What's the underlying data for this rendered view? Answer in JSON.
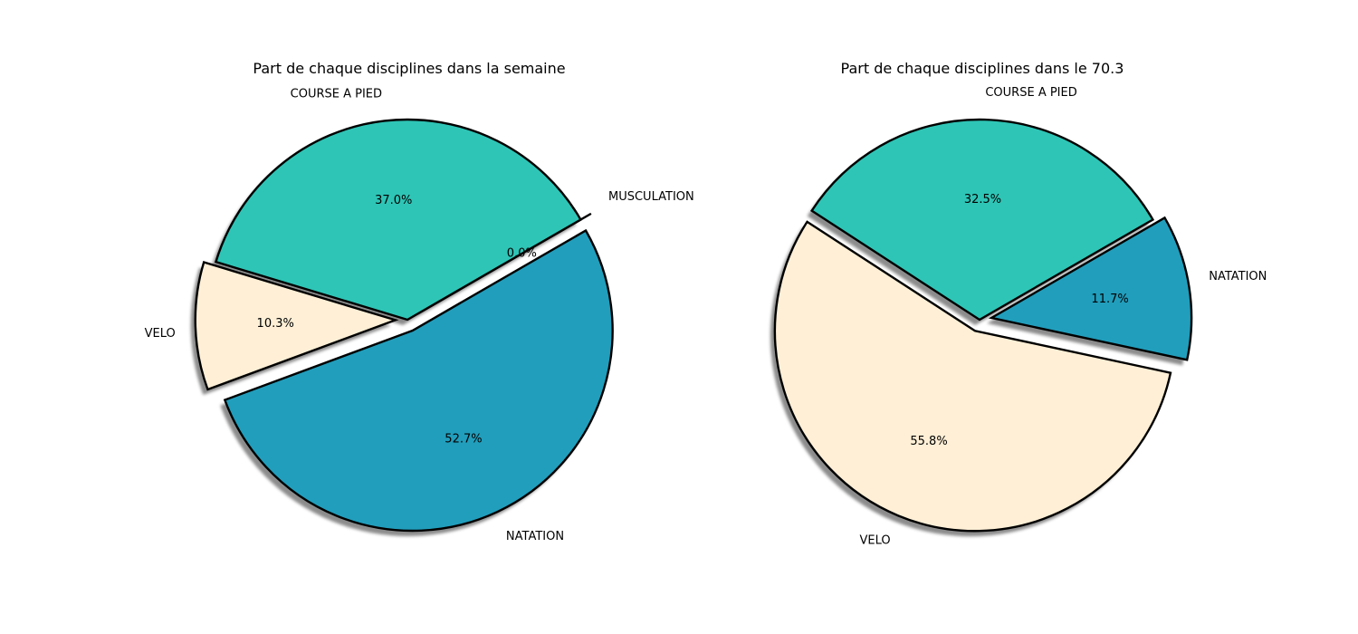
{
  "chart_data": [
    {
      "type": "pie",
      "title": "Part de chaque disciplines dans la semaine",
      "start_angle_deg": 30,
      "slices": [
        {
          "label": "MUSCULATION",
          "value": 0.0,
          "pct_label": "0.0%",
          "color": "#ffffff",
          "explode": true
        },
        {
          "label": "COURSE A PIED",
          "value": 37.0,
          "pct_label": "37.0%",
          "color": "#2ec5b6",
          "explode": false
        },
        {
          "label": "VELO",
          "value": 10.3,
          "pct_label": "10.3%",
          "color": "#feefd6",
          "explode": true
        },
        {
          "label": "NATATION",
          "value": 52.7,
          "pct_label": "52.7%",
          "color": "#219ebc",
          "explode": true
        }
      ]
    },
    {
      "type": "pie",
      "title": "Part de chaque disciplines dans le 70.3",
      "start_angle_deg": 30,
      "slices": [
        {
          "label": "COURSE A PIED",
          "value": 32.5,
          "pct_label": "32.5%",
          "color": "#2ec5b6",
          "explode": false
        },
        {
          "label": "VELO",
          "value": 55.8,
          "pct_label": "55.8%",
          "color": "#feefd6",
          "explode": true
        },
        {
          "label": "NATATION",
          "value": 11.7,
          "pct_label": "11.7%",
          "color": "#219ebc",
          "explode": true
        }
      ]
    }
  ]
}
